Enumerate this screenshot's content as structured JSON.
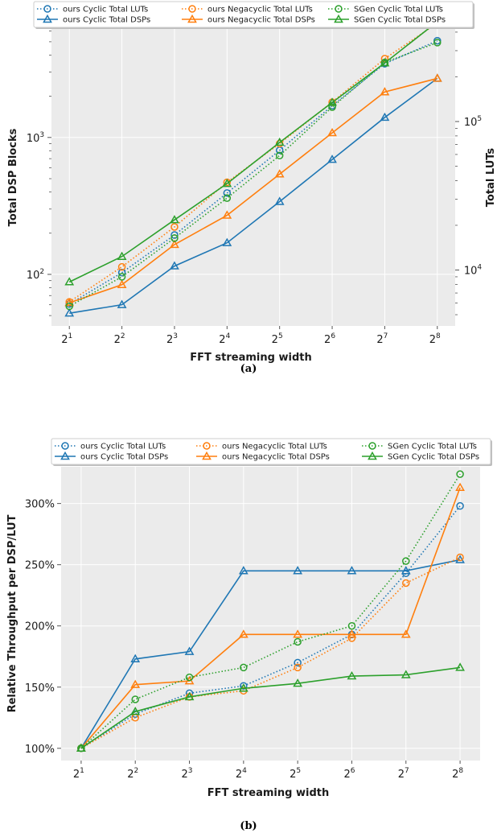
{
  "colors": {
    "ours_cyclic": "#1f77b4",
    "ours_negacyclic": "#ff7f0e",
    "sgen_cyclic": "#2ca02c",
    "plot_bg": "#ebebeb",
    "grid": "#ffffff"
  },
  "chart_data": [
    {
      "id": "a",
      "type": "line",
      "caption": "(a)",
      "xlabel": "FFT streaming width",
      "ylabel_left": "Total DSP Blocks",
      "ylabel_right": "Total LUTs",
      "x_tick_labels": [
        {
          "base": "2",
          "exp": "1"
        },
        {
          "base": "2",
          "exp": "2"
        },
        {
          "base": "2",
          "exp": "3"
        },
        {
          "base": "2",
          "exp": "4"
        },
        {
          "base": "2",
          "exp": "5"
        },
        {
          "base": "2",
          "exp": "6"
        },
        {
          "base": "2",
          "exp": "7"
        },
        {
          "base": "2",
          "exp": "8"
        }
      ],
      "x": [
        2,
        4,
        8,
        16,
        32,
        64,
        128,
        256
      ],
      "left_axis": {
        "scale": "log",
        "ylim": [
          42,
          6200
        ],
        "ticks": [
          {
            "value": 100,
            "base": "10",
            "exp": "2"
          },
          {
            "value": 1000,
            "base": "10",
            "exp": "3"
          }
        ]
      },
      "right_axis": {
        "scale": "log",
        "ylim": [
          4200,
          420000
        ],
        "ticks": [
          {
            "value": 10000,
            "base": "10",
            "exp": "4"
          },
          {
            "value": 100000,
            "base": "10",
            "exp": "5"
          }
        ]
      },
      "grid": true,
      "legend": {
        "placement": "top",
        "columns": 3
      },
      "series": [
        {
          "name": "ours Cyclic Total LUTs",
          "axis": "right",
          "color_key": "ours_cyclic",
          "style": "dotted",
          "marker": "circle",
          "values": [
            5900,
            9600,
            17200,
            33000,
            64000,
            128000,
            245000,
            350000
          ]
        },
        {
          "name": "ours Cyclic Total DSPs",
          "axis": "left",
          "color_key": "ours_cyclic",
          "style": "solid",
          "marker": "triangle",
          "values": [
            52,
            60,
            115,
            170,
            340,
            690,
            1400,
            2700
          ]
        },
        {
          "name": "ours Negacyclic Total LUTs",
          "axis": "right",
          "color_key": "ours_negacyclic",
          "style": "dotted",
          "marker": "circle",
          "values": [
            6100,
            10500,
            19500,
            39000,
            71000,
            135000,
            265000,
            460000
          ]
        },
        {
          "name": "ours Negacyclic Total DSPs",
          "axis": "left",
          "color_key": "ours_negacyclic",
          "style": "solid",
          "marker": "triangle",
          "values": [
            62,
            84,
            165,
            270,
            540,
            1080,
            2150,
            2700
          ]
        },
        {
          "name": "SGen Cyclic Total LUTs",
          "axis": "right",
          "color_key": "sgen_cyclic",
          "style": "dotted",
          "marker": "circle",
          "values": [
            5700,
            9000,
            16400,
            30500,
            59000,
            125000,
            250000,
            340000
          ]
        },
        {
          "name": "SGen Cyclic Total DSPs",
          "axis": "left",
          "color_key": "sgen_cyclic",
          "style": "solid",
          "marker": "triangle",
          "values": [
            88,
            135,
            250,
            460,
            920,
            1800,
            3500,
            7000
          ]
        }
      ]
    },
    {
      "id": "b",
      "type": "line",
      "caption": "(b)",
      "xlabel": "FFT streaming width",
      "ylabel": "Relative Throughput per DSP/LUT",
      "x_tick_labels": [
        {
          "base": "2",
          "exp": "1"
        },
        {
          "base": "2",
          "exp": "2"
        },
        {
          "base": "2",
          "exp": "3"
        },
        {
          "base": "2",
          "exp": "4"
        },
        {
          "base": "2",
          "exp": "5"
        },
        {
          "base": "2",
          "exp": "6"
        },
        {
          "base": "2",
          "exp": "7"
        },
        {
          "base": "2",
          "exp": "8"
        }
      ],
      "x": [
        2,
        4,
        8,
        16,
        32,
        64,
        128,
        256
      ],
      "y_axis": {
        "scale": "linear",
        "ylim": [
          90,
          330
        ],
        "ticks": [
          100,
          150,
          200,
          250,
          300
        ],
        "tick_labels": [
          "100%",
          "150%",
          "200%",
          "250%",
          "300%"
        ]
      },
      "grid": true,
      "legend": {
        "placement": "top",
        "columns": 3
      },
      "series": [
        {
          "name": "ours Cyclic Total LUTs",
          "color_key": "ours_cyclic",
          "style": "dotted",
          "marker": "circle",
          "values": [
            100,
            128,
            145,
            151,
            170,
            193,
            243,
            298
          ]
        },
        {
          "name": "ours Cyclic Total DSPs",
          "color_key": "ours_cyclic",
          "style": "solid",
          "marker": "triangle",
          "values": [
            100,
            173,
            179,
            245,
            245,
            245,
            245,
            254
          ]
        },
        {
          "name": "ours Negacyclic Total LUTs",
          "color_key": "ours_negacyclic",
          "style": "dotted",
          "marker": "circle",
          "values": [
            100,
            125,
            142,
            147,
            166,
            190,
            235,
            256
          ]
        },
        {
          "name": "ours Negacyclic Total DSPs",
          "color_key": "ours_negacyclic",
          "style": "solid",
          "marker": "triangle",
          "values": [
            100,
            152,
            155,
            193,
            193,
            193,
            193,
            313
          ]
        },
        {
          "name": "SGen Cyclic Total LUTs",
          "color_key": "sgen_cyclic",
          "style": "dotted",
          "marker": "circle",
          "values": [
            100,
            140,
            158,
            166,
            187,
            200,
            253,
            324
          ]
        },
        {
          "name": "SGen Cyclic Total DSPs",
          "color_key": "sgen_cyclic",
          "style": "solid",
          "marker": "triangle",
          "values": [
            100,
            130,
            142,
            149,
            153,
            159,
            160,
            166
          ]
        }
      ]
    }
  ]
}
